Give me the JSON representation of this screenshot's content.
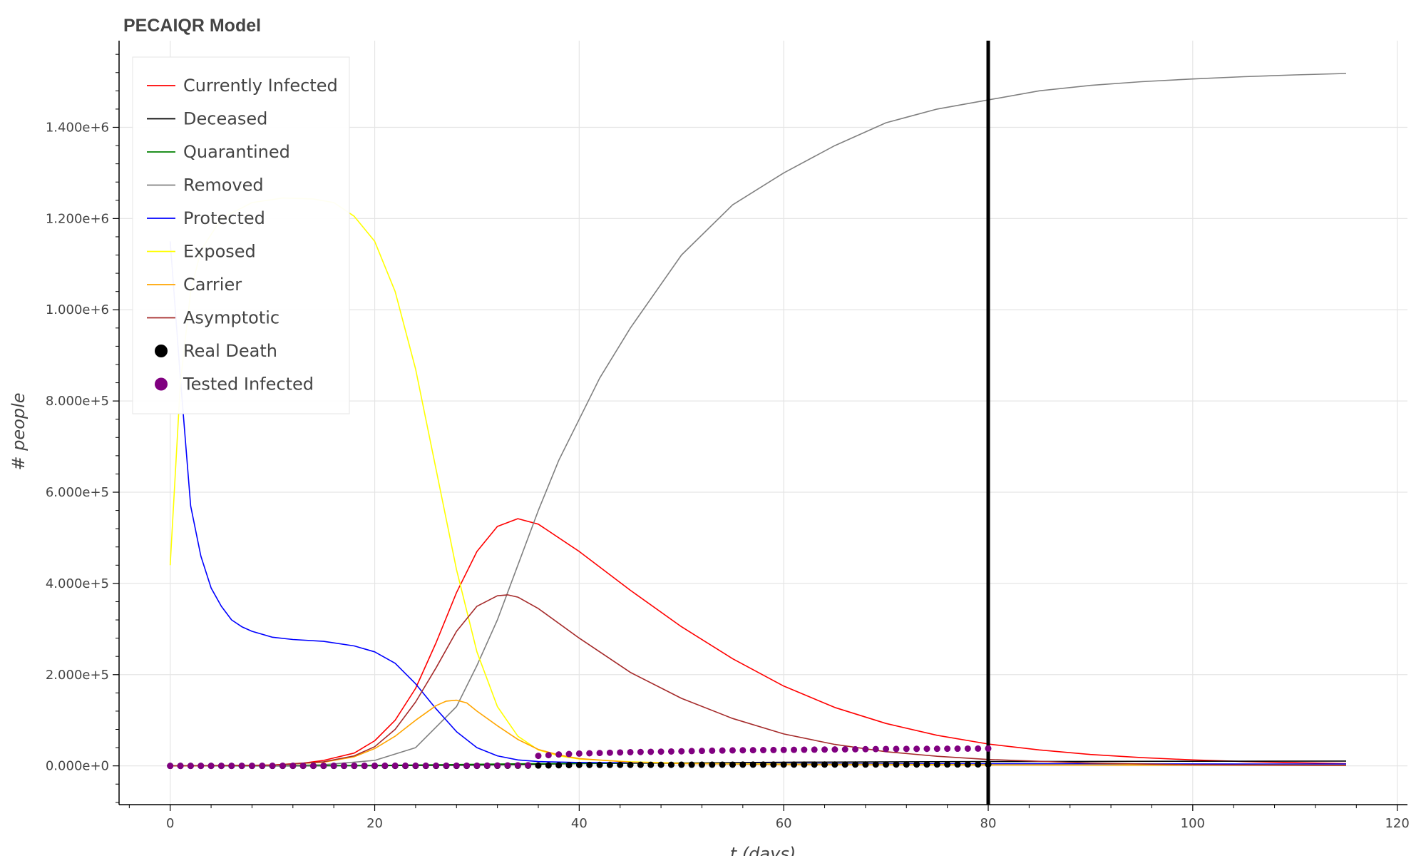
{
  "chart_data": {
    "type": "line",
    "title": "PECAIQR Model",
    "xlabel": "t (days)",
    "ylabel": "# people",
    "xlim": [
      -5,
      121
    ],
    "ylim": [
      -85000,
      1590000
    ],
    "x_ticks": [
      0,
      20,
      40,
      60,
      80,
      100,
      120
    ],
    "x_tick_labels": [
      "0",
      "20",
      "40",
      "60",
      "80",
      "100",
      "120"
    ],
    "y_ticks": [
      0,
      200000,
      400000,
      600000,
      800000,
      1000000,
      1200000,
      1400000
    ],
    "y_tick_labels": [
      "0.000e+0",
      "2.000e+5",
      "4.000e+5",
      "6.000e+5",
      "8.000e+5",
      "1.000e+6",
      "1.200e+6",
      "1.400e+6"
    ],
    "grid": true,
    "legend_position": "top-left",
    "vertical_line": {
      "x": 80,
      "color": "#000000"
    },
    "series": [
      {
        "name": "Currently Infected",
        "kind": "line",
        "color": "#ff0000",
        "points": [
          [
            0,
            0
          ],
          [
            5,
            300
          ],
          [
            10,
            2000
          ],
          [
            13,
            6000
          ],
          [
            15,
            12000
          ],
          [
            18,
            28000
          ],
          [
            20,
            55000
          ],
          [
            22,
            100000
          ],
          [
            24,
            170000
          ],
          [
            26,
            270000
          ],
          [
            28,
            380000
          ],
          [
            30,
            470000
          ],
          [
            32,
            525000
          ],
          [
            34,
            542000
          ],
          [
            36,
            530000
          ],
          [
            40,
            470000
          ],
          [
            45,
            385000
          ],
          [
            50,
            305000
          ],
          [
            55,
            235000
          ],
          [
            60,
            175000
          ],
          [
            65,
            128000
          ],
          [
            70,
            93000
          ],
          [
            75,
            67000
          ],
          [
            80,
            48000
          ],
          [
            85,
            35000
          ],
          [
            90,
            25000
          ],
          [
            95,
            18000
          ],
          [
            100,
            13000
          ],
          [
            105,
            9500
          ],
          [
            110,
            7000
          ],
          [
            115,
            5000
          ]
        ]
      },
      {
        "name": "Deceased",
        "kind": "line",
        "color": "#000000",
        "points": [
          [
            0,
            0
          ],
          [
            20,
            300
          ],
          [
            30,
            2000
          ],
          [
            40,
            5000
          ],
          [
            60,
            8000
          ],
          [
            80,
            9500
          ],
          [
            115,
            10500
          ]
        ]
      },
      {
        "name": "Quarantined",
        "kind": "line",
        "color": "#008000",
        "points": [
          [
            0,
            0
          ],
          [
            20,
            1000
          ],
          [
            30,
            3500
          ],
          [
            35,
            5000
          ],
          [
            45,
            6000
          ],
          [
            60,
            5000
          ],
          [
            80,
            3500
          ],
          [
            115,
            1500
          ]
        ]
      },
      {
        "name": "Removed",
        "kind": "line",
        "color": "#808080",
        "points": [
          [
            0,
            0
          ],
          [
            10,
            500
          ],
          [
            15,
            2500
          ],
          [
            20,
            12000
          ],
          [
            24,
            40000
          ],
          [
            28,
            130000
          ],
          [
            30,
            220000
          ],
          [
            32,
            320000
          ],
          [
            34,
            440000
          ],
          [
            36,
            560000
          ],
          [
            38,
            670000
          ],
          [
            40,
            760000
          ],
          [
            42,
            850000
          ],
          [
            45,
            960000
          ],
          [
            50,
            1120000
          ],
          [
            55,
            1230000
          ],
          [
            60,
            1300000
          ],
          [
            65,
            1360000
          ],
          [
            70,
            1410000
          ],
          [
            75,
            1440000
          ],
          [
            80,
            1460000
          ],
          [
            85,
            1480000
          ],
          [
            90,
            1492000
          ],
          [
            95,
            1500000
          ],
          [
            100,
            1506000
          ],
          [
            105,
            1511000
          ],
          [
            110,
            1515000
          ],
          [
            115,
            1518000
          ]
        ]
      },
      {
        "name": "Protected",
        "kind": "line",
        "color": "#0000ff",
        "points": [
          [
            0,
            1150000
          ],
          [
            1,
            850000
          ],
          [
            2,
            570000
          ],
          [
            3,
            460000
          ],
          [
            4,
            390000
          ],
          [
            5,
            350000
          ],
          [
            6,
            320000
          ],
          [
            7,
            305000
          ],
          [
            8,
            295000
          ],
          [
            10,
            282000
          ],
          [
            12,
            277000
          ],
          [
            15,
            273000
          ],
          [
            18,
            263000
          ],
          [
            20,
            250000
          ],
          [
            22,
            225000
          ],
          [
            24,
            180000
          ],
          [
            26,
            125000
          ],
          [
            28,
            75000
          ],
          [
            30,
            40000
          ],
          [
            32,
            22000
          ],
          [
            34,
            13000
          ],
          [
            36,
            9500
          ],
          [
            40,
            7500
          ],
          [
            50,
            6000
          ],
          [
            70,
            5000
          ],
          [
            90,
            4500
          ],
          [
            115,
            4000
          ]
        ]
      },
      {
        "name": "Exposed",
        "kind": "line",
        "color": "#ffff00",
        "points": [
          [
            0,
            440000
          ],
          [
            1,
            840000
          ],
          [
            2,
            1040000
          ],
          [
            3,
            1130000
          ],
          [
            5,
            1200000
          ],
          [
            8,
            1235000
          ],
          [
            11,
            1245000
          ],
          [
            14,
            1243000
          ],
          [
            16,
            1235000
          ],
          [
            18,
            1205000
          ],
          [
            20,
            1150000
          ],
          [
            22,
            1040000
          ],
          [
            24,
            870000
          ],
          [
            26,
            650000
          ],
          [
            28,
            430000
          ],
          [
            30,
            250000
          ],
          [
            32,
            130000
          ],
          [
            34,
            65000
          ],
          [
            36,
            35000
          ],
          [
            38,
            22000
          ],
          [
            40,
            15000
          ],
          [
            45,
            9000
          ],
          [
            50,
            6000
          ],
          [
            60,
            4000
          ],
          [
            80,
            2500
          ],
          [
            115,
            1500
          ]
        ]
      },
      {
        "name": "Carrier",
        "kind": "line",
        "color": "#ffa500",
        "points": [
          [
            0,
            0
          ],
          [
            10,
            1500
          ],
          [
            15,
            8000
          ],
          [
            18,
            20000
          ],
          [
            20,
            38000
          ],
          [
            22,
            65000
          ],
          [
            24,
            100000
          ],
          [
            26,
            132000
          ],
          [
            27,
            142000
          ],
          [
            28,
            144000
          ],
          [
            29,
            138000
          ],
          [
            30,
            120000
          ],
          [
            32,
            88000
          ],
          [
            34,
            58000
          ],
          [
            36,
            36000
          ],
          [
            38,
            24000
          ],
          [
            40,
            16000
          ],
          [
            45,
            8000
          ],
          [
            50,
            5000
          ],
          [
            60,
            3000
          ],
          [
            80,
            2000
          ],
          [
            115,
            1200
          ]
        ]
      },
      {
        "name": "Asymptotic",
        "kind": "line",
        "color": "#a52a2a",
        "points": [
          [
            0,
            0
          ],
          [
            10,
            1500
          ],
          [
            15,
            9000
          ],
          [
            18,
            22000
          ],
          [
            20,
            42000
          ],
          [
            22,
            80000
          ],
          [
            24,
            140000
          ],
          [
            26,
            215000
          ],
          [
            28,
            295000
          ],
          [
            30,
            350000
          ],
          [
            32,
            373000
          ],
          [
            33,
            375000
          ],
          [
            34,
            370000
          ],
          [
            36,
            345000
          ],
          [
            40,
            280000
          ],
          [
            45,
            205000
          ],
          [
            50,
            148000
          ],
          [
            55,
            104000
          ],
          [
            60,
            70000
          ],
          [
            65,
            47000
          ],
          [
            70,
            31000
          ],
          [
            75,
            21000
          ],
          [
            80,
            14000
          ],
          [
            90,
            6000
          ],
          [
            100,
            2500
          ],
          [
            115,
            1000
          ]
        ]
      },
      {
        "name": "Real Death",
        "kind": "scatter",
        "color": "#000000",
        "x_start": 0,
        "x_end": 80,
        "x_step": 1,
        "points": [
          [
            0,
            0
          ],
          [
            30,
            0
          ],
          [
            35,
            500
          ],
          [
            40,
            2000
          ],
          [
            50,
            2500
          ],
          [
            60,
            2800
          ],
          [
            70,
            3000
          ],
          [
            80,
            3200
          ]
        ]
      },
      {
        "name": "Tested Infected",
        "kind": "scatter",
        "color": "#800080",
        "x_start": 0,
        "x_end": 80,
        "x_step": 1,
        "points": [
          [
            0,
            0
          ],
          [
            30,
            500
          ],
          [
            35,
            1500
          ],
          [
            36,
            22000
          ],
          [
            38,
            25000
          ],
          [
            40,
            27000
          ],
          [
            45,
            30000
          ],
          [
            50,
            32000
          ],
          [
            55,
            34000
          ],
          [
            60,
            35000
          ],
          [
            65,
            36000
          ],
          [
            70,
            37000
          ],
          [
            75,
            37500
          ],
          [
            80,
            38000
          ]
        ]
      }
    ]
  }
}
